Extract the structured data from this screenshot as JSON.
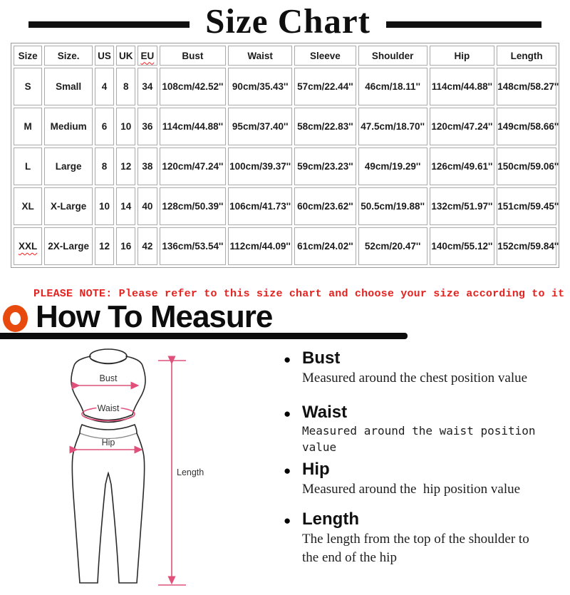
{
  "title": "Size Chart",
  "table": {
    "headers": [
      "Size",
      "Size.",
      "US",
      "UK",
      "EU",
      "Bust",
      "Waist",
      "Sleeve",
      "Shoulder",
      "Hip",
      "Length"
    ],
    "rows": [
      [
        "S",
        "Small",
        "4",
        "8",
        "34",
        "108cm/42.52''",
        "90cm/35.43''",
        "57cm/22.44''",
        "46cm/18.11''",
        "114cm/44.88''",
        "148cm/58.27''"
      ],
      [
        "M",
        "Medium",
        "6",
        "10",
        "36",
        "114cm/44.88''",
        "95cm/37.40''",
        "58cm/22.83''",
        "47.5cm/18.70''",
        "120cm/47.24''",
        "149cm/58.66''"
      ],
      [
        "L",
        "Large",
        "8",
        "12",
        "38",
        "120cm/47.24''",
        "100cm/39.37''",
        "59cm/23.23''",
        "49cm/19.29''",
        "126cm/49.61''",
        "150cm/59.06''"
      ],
      [
        "XL",
        "X-Large",
        "10",
        "14",
        "40",
        "128cm/50.39''",
        "106cm/41.73''",
        "60cm/23.62''",
        "50.5cm/19.88''",
        "132cm/51.97''",
        "151cm/59.45''"
      ],
      [
        "XXL",
        "2X-Large",
        "12",
        "16",
        "42",
        "136cm/53.54''",
        "112cm/44.09''",
        "61cm/24.02''",
        "52cm/20.47''",
        "140cm/55.12''",
        "152cm/59.84''"
      ]
    ],
    "misspelled": [
      "EU",
      "XXL"
    ]
  },
  "note": "PLEASE NOTE: Please refer to this size chart and choose your size according to it",
  "how_to_measure_title": "How To Measure",
  "figure": {
    "bust": "Bust",
    "waist": "Waist",
    "hip": "Hip",
    "length": "Length"
  },
  "measurements": [
    {
      "label": "Bust",
      "style": "serif",
      "description": "Measured around the chest position value"
    },
    {
      "label": "Waist",
      "style": "mono",
      "description": "Measured around the waist position value"
    },
    {
      "label": "Hip",
      "style": "serif",
      "description": "Measured around the  hip position value"
    },
    {
      "label": "Length",
      "style": "serif",
      "description": "The length from the top of the shoulder to\nthe end of the hip"
    }
  ],
  "colors": {
    "accent_orange": "#e84a0e",
    "note_red": "#e42320",
    "measure_pink": "#e0507a",
    "misspell_red": "#ff1a1a",
    "ink": "#0d0d0d"
  }
}
